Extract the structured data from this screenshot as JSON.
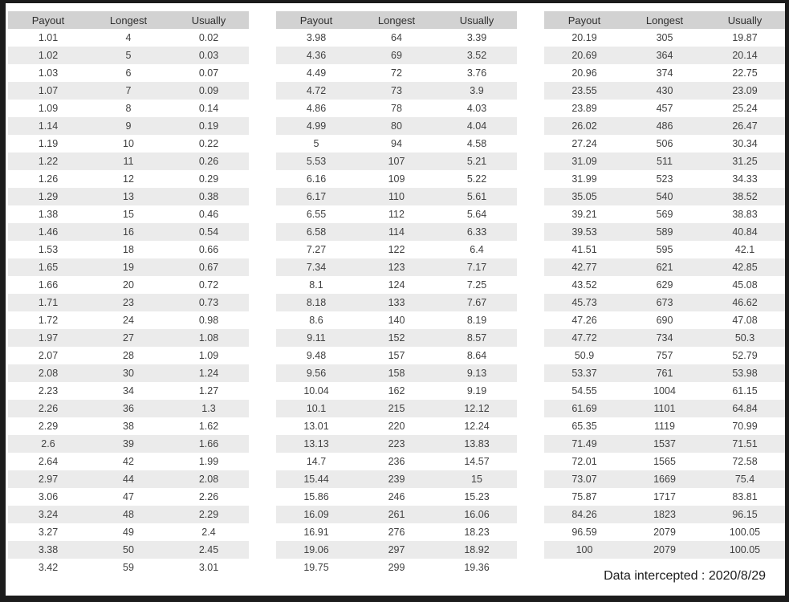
{
  "header_labels": [
    "Payout",
    "Longest",
    "Usually"
  ],
  "tables": [
    {
      "rows": [
        [
          "1.01",
          "4",
          "0.02"
        ],
        [
          "1.02",
          "5",
          "0.03"
        ],
        [
          "1.03",
          "6",
          "0.07"
        ],
        [
          "1.07",
          "7",
          "0.09"
        ],
        [
          "1.09",
          "8",
          "0.14"
        ],
        [
          "1.14",
          "9",
          "0.19"
        ],
        [
          "1.19",
          "10",
          "0.22"
        ],
        [
          "1.22",
          "11",
          "0.26"
        ],
        [
          "1.26",
          "12",
          "0.29"
        ],
        [
          "1.29",
          "13",
          "0.38"
        ],
        [
          "1.38",
          "15",
          "0.46"
        ],
        [
          "1.46",
          "16",
          "0.54"
        ],
        [
          "1.53",
          "18",
          "0.66"
        ],
        [
          "1.65",
          "19",
          "0.67"
        ],
        [
          "1.66",
          "20",
          "0.72"
        ],
        [
          "1.71",
          "23",
          "0.73"
        ],
        [
          "1.72",
          "24",
          "0.98"
        ],
        [
          "1.97",
          "27",
          "1.08"
        ],
        [
          "2.07",
          "28",
          "1.09"
        ],
        [
          "2.08",
          "30",
          "1.24"
        ],
        [
          "2.23",
          "34",
          "1.27"
        ],
        [
          "2.26",
          "36",
          "1.3"
        ],
        [
          "2.29",
          "38",
          "1.62"
        ],
        [
          "2.6",
          "39",
          "1.66"
        ],
        [
          "2.64",
          "42",
          "1.99"
        ],
        [
          "2.97",
          "44",
          "2.08"
        ],
        [
          "3.06",
          "47",
          "2.26"
        ],
        [
          "3.24",
          "48",
          "2.29"
        ],
        [
          "3.27",
          "49",
          "2.4"
        ],
        [
          "3.38",
          "50",
          "2.45"
        ],
        [
          "3.42",
          "59",
          "3.01"
        ]
      ]
    },
    {
      "rows": [
        [
          "3.98",
          "64",
          "3.39"
        ],
        [
          "4.36",
          "69",
          "3.52"
        ],
        [
          "4.49",
          "72",
          "3.76"
        ],
        [
          "4.72",
          "73",
          "3.9"
        ],
        [
          "4.86",
          "78",
          "4.03"
        ],
        [
          "4.99",
          "80",
          "4.04"
        ],
        [
          "5",
          "94",
          "4.58"
        ],
        [
          "5.53",
          "107",
          "5.21"
        ],
        [
          "6.16",
          "109",
          "5.22"
        ],
        [
          "6.17",
          "110",
          "5.61"
        ],
        [
          "6.55",
          "112",
          "5.64"
        ],
        [
          "6.58",
          "114",
          "6.33"
        ],
        [
          "7.27",
          "122",
          "6.4"
        ],
        [
          "7.34",
          "123",
          "7.17"
        ],
        [
          "8.1",
          "124",
          "7.25"
        ],
        [
          "8.18",
          "133",
          "7.67"
        ],
        [
          "8.6",
          "140",
          "8.19"
        ],
        [
          "9.11",
          "152",
          "8.57"
        ],
        [
          "9.48",
          "157",
          "8.64"
        ],
        [
          "9.56",
          "158",
          "9.13"
        ],
        [
          "10.04",
          "162",
          "9.19"
        ],
        [
          "10.1",
          "215",
          "12.12"
        ],
        [
          "13.01",
          "220",
          "12.24"
        ],
        [
          "13.13",
          "223",
          "13.83"
        ],
        [
          "14.7",
          "236",
          "14.57"
        ],
        [
          "15.44",
          "239",
          "15"
        ],
        [
          "15.86",
          "246",
          "15.23"
        ],
        [
          "16.09",
          "261",
          "16.06"
        ],
        [
          "16.91",
          "276",
          "18.23"
        ],
        [
          "19.06",
          "297",
          "18.92"
        ],
        [
          "19.75",
          "299",
          "19.36"
        ]
      ]
    },
    {
      "rows": [
        [
          "20.19",
          "305",
          "19.87"
        ],
        [
          "20.69",
          "364",
          "20.14"
        ],
        [
          "20.96",
          "374",
          "22.75"
        ],
        [
          "23.55",
          "430",
          "23.09"
        ],
        [
          "23.89",
          "457",
          "25.24"
        ],
        [
          "26.02",
          "486",
          "26.47"
        ],
        [
          "27.24",
          "506",
          "30.34"
        ],
        [
          "31.09",
          "511",
          "31.25"
        ],
        [
          "31.99",
          "523",
          "34.33"
        ],
        [
          "35.05",
          "540",
          "38.52"
        ],
        [
          "39.21",
          "569",
          "38.83"
        ],
        [
          "39.53",
          "589",
          "40.84"
        ],
        [
          "41.51",
          "595",
          "42.1"
        ],
        [
          "42.77",
          "621",
          "42.85"
        ],
        [
          "43.52",
          "629",
          "45.08"
        ],
        [
          "45.73",
          "673",
          "46.62"
        ],
        [
          "47.26",
          "690",
          "47.08"
        ],
        [
          "47.72",
          "734",
          "50.3"
        ],
        [
          "50.9",
          "757",
          "52.79"
        ],
        [
          "53.37",
          "761",
          "53.98"
        ],
        [
          "54.55",
          "1004",
          "61.15"
        ],
        [
          "61.69",
          "1101",
          "64.84"
        ],
        [
          "65.35",
          "1119",
          "70.99"
        ],
        [
          "71.49",
          "1537",
          "71.51"
        ],
        [
          "72.01",
          "1565",
          "72.58"
        ],
        [
          "73.07",
          "1669",
          "75.4"
        ],
        [
          "75.87",
          "1717",
          "83.81"
        ],
        [
          "84.26",
          "1823",
          "96.15"
        ],
        [
          "96.59",
          "2079",
          "100.05"
        ],
        [
          "100",
          "2079",
          "100.05"
        ]
      ]
    }
  ],
  "footer": {
    "caption": "Data intercepted : 2020/8/29"
  },
  "colors": {
    "frame_border": "#1c1c1c",
    "page_background": "#ffffff",
    "header_background": "#d2d2d2",
    "stripe_background": "#ebebeb",
    "text": "#414141",
    "footer_text": "#1d1d1d"
  }
}
